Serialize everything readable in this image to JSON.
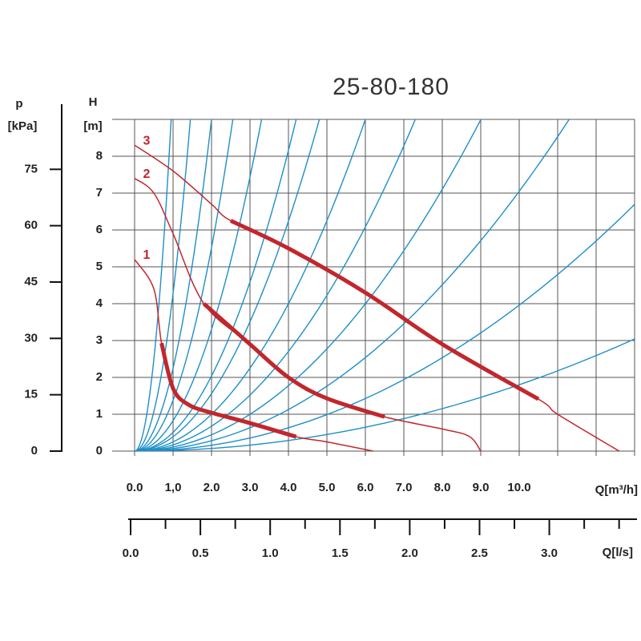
{
  "chart_data": {
    "type": "line",
    "title": "25-80-180",
    "y_label": "H",
    "y_unit": "[m]",
    "y2_label": "p",
    "y2_unit": "[kPa]",
    "x_label": "Q[m³/h]",
    "x2_label": "Q[l/s]",
    "xlim": [
      0,
      13
    ],
    "ylim": [
      0,
      9
    ],
    "y2lim": [
      0,
      88.29
    ],
    "x2lim": [
      0,
      3.611
    ],
    "xticks": [
      {
        "value": 0,
        "label": "0.0"
      },
      {
        "value": 1,
        "label": "1,0"
      },
      {
        "value": 2,
        "label": "2.0"
      },
      {
        "value": 3,
        "label": "3.0"
      },
      {
        "value": 4,
        "label": "4.0"
      },
      {
        "value": 5,
        "label": "5.0"
      },
      {
        "value": 6,
        "label": "6.0"
      },
      {
        "value": 7,
        "label": "7.0"
      },
      {
        "value": 8,
        "label": "8.0"
      },
      {
        "value": 9,
        "label": "9.0"
      },
      {
        "value": 10,
        "label": "10.0"
      }
    ],
    "xgrid_extra": [
      11,
      12,
      13
    ],
    "yticks": [
      0,
      1,
      2,
      3,
      4,
      5,
      6,
      7,
      8
    ],
    "ygrid_extra": [
      9
    ],
    "y2ticks": [
      0,
      15,
      30,
      45,
      60,
      75
    ],
    "x2ticks": [
      {
        "value": 0,
        "label": "0.0"
      },
      {
        "value": 0.5,
        "label": "0.5"
      },
      {
        "value": 1,
        "label": "1.0"
      },
      {
        "value": 1.5,
        "label": "1.5"
      },
      {
        "value": 2,
        "label": "2.0"
      },
      {
        "value": 2.5,
        "label": "2.5"
      },
      {
        "value": 3,
        "label": "3.0"
      }
    ],
    "x2minor_ticks": [
      0.25,
      0.75,
      1.25,
      1.75,
      2.25,
      2.75,
      3.25,
      3.5
    ],
    "grid": true,
    "series": [
      {
        "name": "1",
        "color": "#c1272d",
        "x": [
          0,
          0.5,
          0.7,
          1,
          1.4,
          2,
          3,
          4.2,
          5,
          6.2
        ],
        "values": [
          5.2,
          4.4,
          2.93,
          1.7,
          1.26,
          1.04,
          0.76,
          0.39,
          0.25,
          0
        ],
        "duty_range": [
          0.7,
          4.2
        ]
      },
      {
        "name": "2",
        "color": "#c1272d",
        "x": [
          0,
          0.5,
          1,
          1.8,
          3,
          4,
          5,
          6.5,
          8,
          8.7,
          9
        ],
        "values": [
          7.4,
          7.0,
          5.9,
          4.0,
          2.9,
          2.0,
          1.43,
          0.93,
          0.6,
          0.4,
          0
        ],
        "duty_range": [
          1.8,
          6.5
        ]
      },
      {
        "name": "3",
        "color": "#c1272d",
        "x": [
          0,
          1,
          2,
          2.5,
          4,
          6,
          8,
          10.5,
          11,
          12.6
        ],
        "values": [
          8.3,
          7.6,
          6.7,
          6.25,
          5.5,
          4.3,
          2.9,
          1.41,
          1.0,
          0
        ],
        "duty_range": [
          2.5,
          10.5
        ]
      }
    ],
    "system_curves": {
      "color": "#1e8ec8",
      "k": [
        9.97,
        4.28,
        2.25,
        1.38,
        0.826,
        0.51,
        0.39,
        0.25,
        0.169,
        0.111,
        0.0705,
        0.0396,
        0.018
      ]
    }
  }
}
